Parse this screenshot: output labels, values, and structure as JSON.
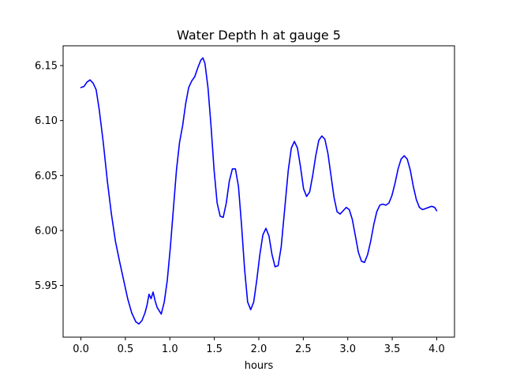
{
  "chart_data": {
    "type": "line",
    "title": "Water Depth h at gauge 5",
    "xlabel": "hours",
    "ylabel": "",
    "xlim": [
      -0.2,
      4.2
    ],
    "ylim": [
      5.903,
      6.168
    ],
    "xticks": [
      0.0,
      0.5,
      1.0,
      1.5,
      2.0,
      2.5,
      3.0,
      3.5,
      4.0
    ],
    "xtick_labels": [
      "0.0",
      "0.5",
      "1.0",
      "1.5",
      "2.0",
      "2.5",
      "3.0",
      "3.5",
      "4.0"
    ],
    "yticks": [
      5.95,
      6.0,
      6.05,
      6.1,
      6.15
    ],
    "ytick_labels": [
      "5.95",
      "6.00",
      "6.05",
      "6.10",
      "6.15"
    ],
    "grid": false,
    "series": [
      {
        "color": "#0000ff",
        "points": [
          [
            0.0,
            6.13
          ],
          [
            0.03,
            6.131
          ],
          [
            0.06,
            6.135
          ],
          [
            0.09,
            6.137
          ],
          [
            0.12,
            6.134
          ],
          [
            0.15,
            6.128
          ],
          [
            0.18,
            6.11
          ],
          [
            0.22,
            6.08
          ],
          [
            0.26,
            6.045
          ],
          [
            0.3,
            6.015
          ],
          [
            0.34,
            5.99
          ],
          [
            0.38,
            5.972
          ],
          [
            0.42,
            5.955
          ],
          [
            0.46,
            5.938
          ],
          [
            0.5,
            5.925
          ],
          [
            0.54,
            5.917
          ],
          [
            0.57,
            5.915
          ],
          [
            0.6,
            5.918
          ],
          [
            0.63,
            5.925
          ],
          [
            0.65,
            5.932
          ],
          [
            0.67,
            5.942
          ],
          [
            0.69,
            5.938
          ],
          [
            0.71,
            5.944
          ],
          [
            0.73,
            5.936
          ],
          [
            0.75,
            5.93
          ],
          [
            0.77,
            5.927
          ],
          [
            0.79,
            5.924
          ],
          [
            0.82,
            5.935
          ],
          [
            0.85,
            5.955
          ],
          [
            0.88,
            5.985
          ],
          [
            0.91,
            6.02
          ],
          [
            0.94,
            6.055
          ],
          [
            0.97,
            6.08
          ],
          [
            1.0,
            6.095
          ],
          [
            1.03,
            6.115
          ],
          [
            1.06,
            6.13
          ],
          [
            1.09,
            6.136
          ],
          [
            1.12,
            6.14
          ],
          [
            1.15,
            6.148
          ],
          [
            1.18,
            6.155
          ],
          [
            1.2,
            6.157
          ],
          [
            1.22,
            6.152
          ],
          [
            1.25,
            6.13
          ],
          [
            1.28,
            6.095
          ],
          [
            1.31,
            6.055
          ],
          [
            1.34,
            6.025
          ],
          [
            1.37,
            6.013
          ],
          [
            1.4,
            6.012
          ],
          [
            1.43,
            6.025
          ],
          [
            1.46,
            6.045
          ],
          [
            1.49,
            6.056
          ],
          [
            1.52,
            6.056
          ],
          [
            1.55,
            6.04
          ],
          [
            1.58,
            6.005
          ],
          [
            1.61,
            5.965
          ],
          [
            1.64,
            5.935
          ],
          [
            1.67,
            5.928
          ],
          [
            1.7,
            5.935
          ],
          [
            1.73,
            5.955
          ],
          [
            1.76,
            5.978
          ],
          [
            1.79,
            5.996
          ],
          [
            1.82,
            6.002
          ],
          [
            1.85,
            5.995
          ],
          [
            1.88,
            5.978
          ],
          [
            1.91,
            5.967
          ],
          [
            1.94,
            5.968
          ],
          [
            1.97,
            5.985
          ],
          [
            2.0,
            6.015
          ],
          [
            2.04,
            6.055
          ],
          [
            2.07,
            6.075
          ],
          [
            2.1,
            6.081
          ],
          [
            2.13,
            6.075
          ],
          [
            2.16,
            6.058
          ],
          [
            2.19,
            6.038
          ],
          [
            2.22,
            6.031
          ],
          [
            2.25,
            6.035
          ],
          [
            2.28,
            6.05
          ],
          [
            2.31,
            6.068
          ],
          [
            2.34,
            6.082
          ],
          [
            2.37,
            6.086
          ],
          [
            2.4,
            6.083
          ],
          [
            2.43,
            6.07
          ],
          [
            2.46,
            6.05
          ],
          [
            2.49,
            6.03
          ],
          [
            2.52,
            6.017
          ],
          [
            2.55,
            6.015
          ],
          [
            2.58,
            6.018
          ],
          [
            2.61,
            6.021
          ],
          [
            2.64,
            6.019
          ],
          [
            2.67,
            6.01
          ],
          [
            2.7,
            5.995
          ],
          [
            2.73,
            5.98
          ],
          [
            2.76,
            5.972
          ],
          [
            2.79,
            5.971
          ],
          [
            2.82,
            5.978
          ],
          [
            2.85,
            5.99
          ],
          [
            2.88,
            6.005
          ],
          [
            2.91,
            6.017
          ],
          [
            2.94,
            6.023
          ],
          [
            2.97,
            6.024
          ],
          [
            3.0,
            6.023
          ],
          [
            3.03,
            6.025
          ],
          [
            3.06,
            6.032
          ],
          [
            3.09,
            6.043
          ],
          [
            3.12,
            6.056
          ],
          [
            3.15,
            6.065
          ],
          [
            3.18,
            6.068
          ],
          [
            3.21,
            6.065
          ],
          [
            3.24,
            6.055
          ],
          [
            3.27,
            6.04
          ],
          [
            3.3,
            6.028
          ],
          [
            3.33,
            6.021
          ],
          [
            3.36,
            6.019
          ],
          [
            3.39,
            6.02
          ],
          [
            3.42,
            6.021
          ],
          [
            3.45,
            6.022
          ],
          [
            3.48,
            6.021
          ],
          [
            3.5,
            6.018
          ]
        ],
        "x_scale": 1.1428571
      }
    ]
  }
}
